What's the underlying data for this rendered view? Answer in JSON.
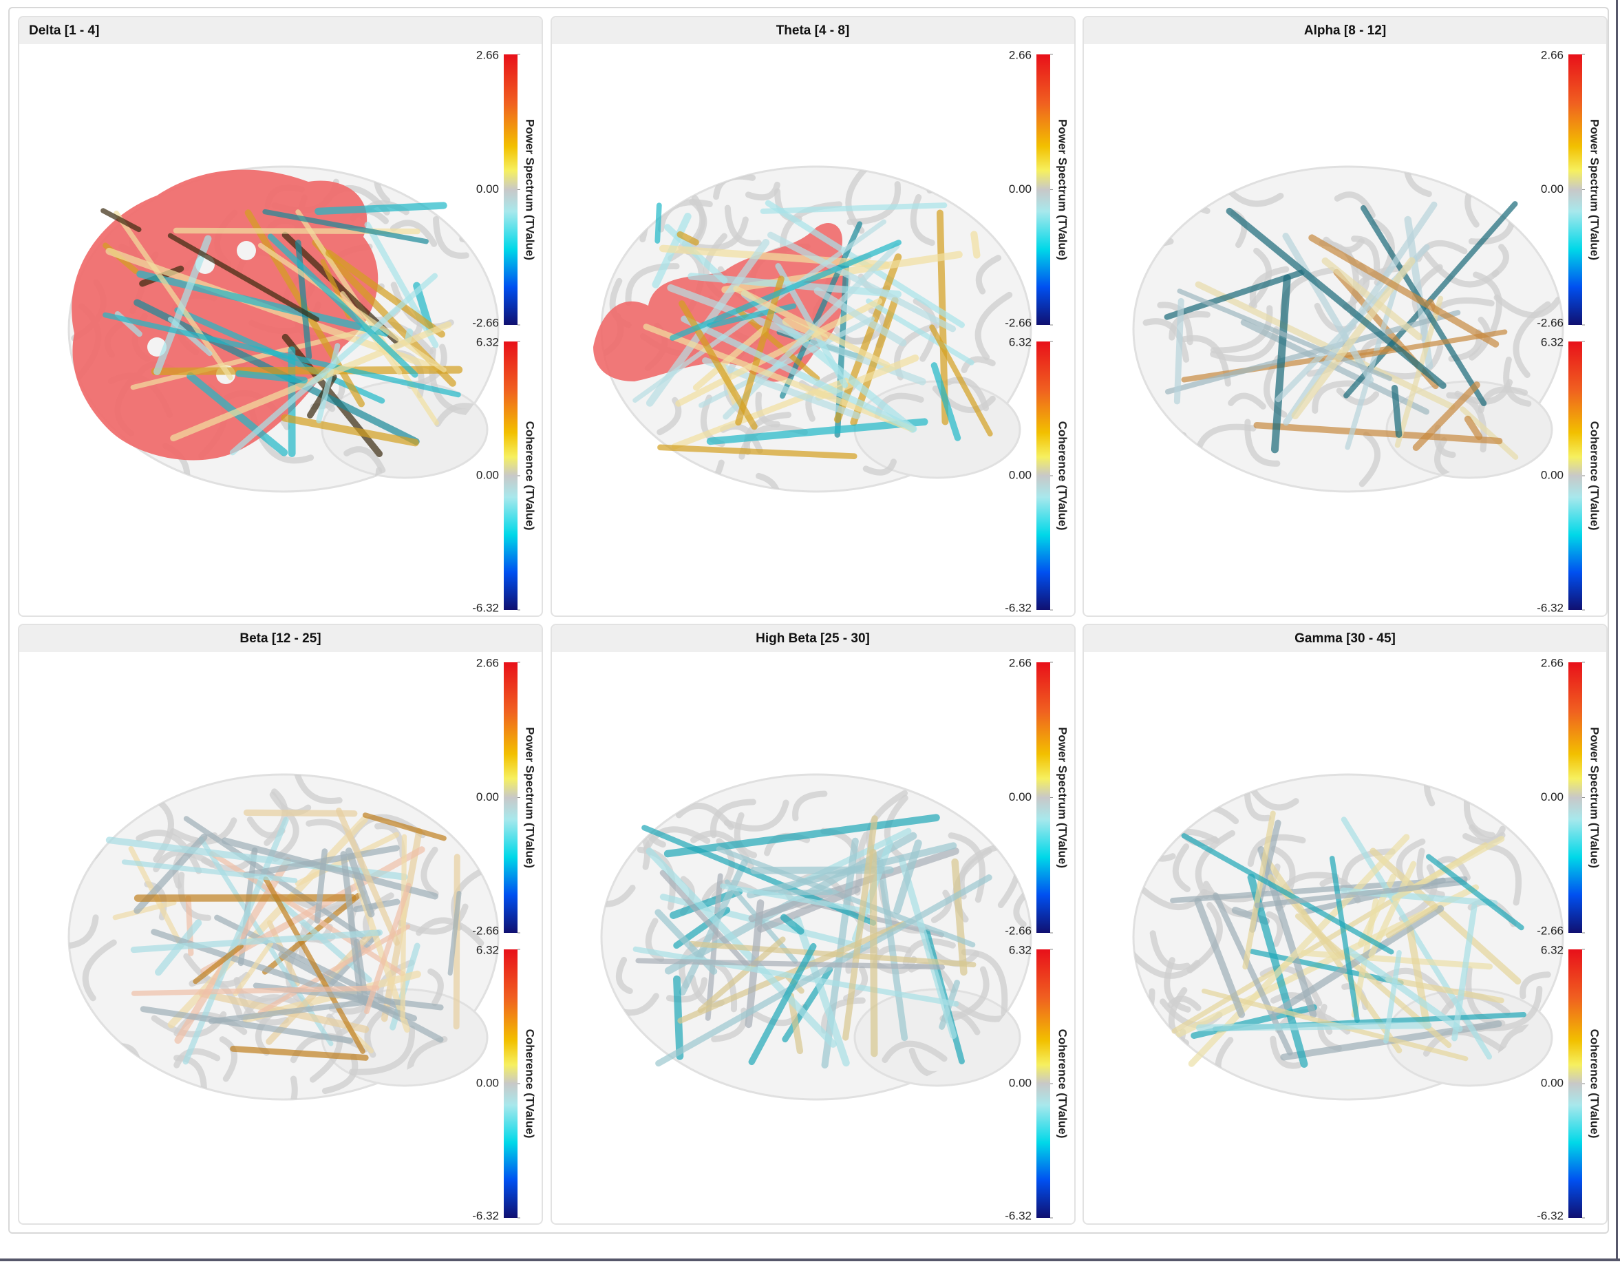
{
  "panels": [
    {
      "title": "Delta [1 - 4]",
      "colorbars": [
        {
          "label": "Power Spectrum (TValue)",
          "lim": [
            -2.66,
            2.66
          ],
          "ticks": [
            2.66,
            {
              "value": 0,
              "label": "0.00"
            },
            -2.66
          ]
        },
        {
          "label": "Coherence (TValue)",
          "lim": [
            -6.32,
            6.32
          ],
          "ticks": [
            6.32,
            {
              "value": 0,
              "label": "0.00"
            },
            -6.32
          ]
        }
      ]
    },
    {
      "title": "Theta [4 - 8]",
      "colorbars": [
        {
          "label": "Power Spectrum (TValue)",
          "lim": [
            -2.66,
            2.66
          ],
          "ticks": [
            2.66,
            {
              "value": 0,
              "label": "0.00"
            },
            -2.66
          ]
        },
        {
          "label": "Coherence (TValue)",
          "lim": [
            -6.32,
            6.32
          ],
          "ticks": [
            6.32,
            {
              "value": 0,
              "label": "0.00"
            },
            -6.32
          ]
        }
      ]
    },
    {
      "title": "Alpha [8 - 12]",
      "colorbars": [
        {
          "label": "Power Spectrum (TValue)",
          "lim": [
            -2.66,
            2.66
          ],
          "ticks": [
            2.66,
            {
              "value": 0,
              "label": "0.00"
            },
            -2.66
          ]
        },
        {
          "label": "Coherence (TValue)",
          "lim": [
            -6.32,
            6.32
          ],
          "ticks": [
            6.32,
            {
              "value": 0,
              "label": "0.00"
            },
            -6.32
          ]
        }
      ]
    },
    {
      "title": "Beta [12 - 25]",
      "colorbars": [
        {
          "label": "Power Spectrum (TValue)",
          "lim": [
            -2.66,
            2.66
          ],
          "ticks": [
            2.66,
            {
              "value": 0,
              "label": "0.00"
            },
            -2.66
          ]
        },
        {
          "label": "Coherence (TValue)",
          "lim": [
            -6.32,
            6.32
          ],
          "ticks": [
            6.32,
            {
              "value": 0,
              "label": "0.00"
            },
            -6.32
          ]
        }
      ]
    },
    {
      "title": "High Beta [25 - 30]",
      "colorbars": [
        {
          "label": "Power Spectrum (TValue)",
          "lim": [
            -2.66,
            2.66
          ],
          "ticks": [
            2.66,
            {
              "value": 0,
              "label": "0.00"
            },
            -2.66
          ]
        },
        {
          "label": "Coherence (TValue)",
          "lim": [
            -6.32,
            6.32
          ],
          "ticks": [
            6.32,
            {
              "value": 0,
              "label": "0.00"
            },
            -6.32
          ]
        }
      ]
    },
    {
      "title": "Gamma [30 - 45]",
      "colorbars": [
        {
          "label": "Power Spectrum (TValue)",
          "lim": [
            -2.66,
            2.66
          ],
          "ticks": [
            2.66,
            {
              "value": 0,
              "label": "0.00"
            },
            -2.66
          ]
        },
        {
          "label": "Coherence (TValue)",
          "lim": [
            -6.32,
            6.32
          ],
          "ticks": [
            6.32,
            {
              "value": 0,
              "label": "0.00"
            },
            -6.32
          ]
        }
      ]
    }
  ]
}
